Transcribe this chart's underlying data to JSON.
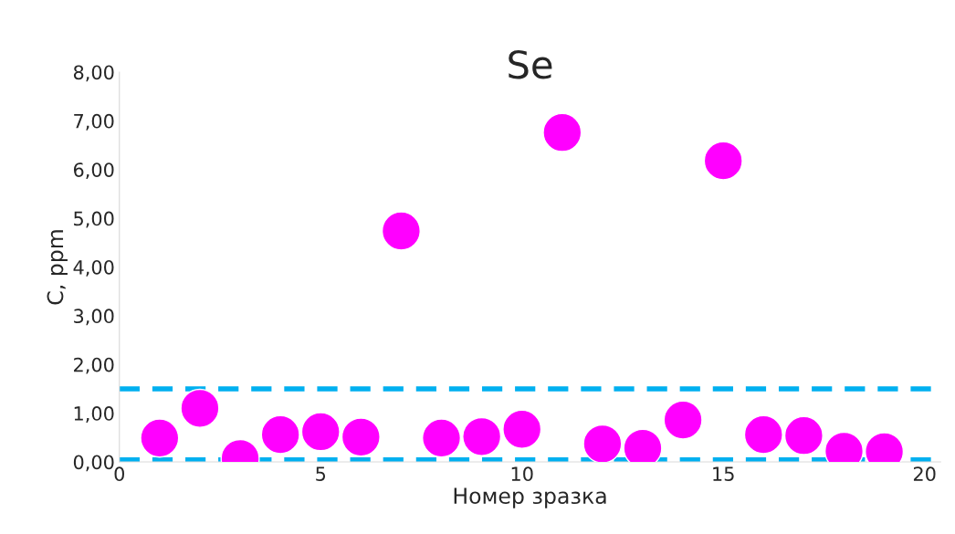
{
  "chart_data": {
    "type": "scatter",
    "title": "Se",
    "xlabel": "Номер зразка",
    "ylabel": "C, ppm",
    "x": [
      1,
      2,
      3,
      4,
      5,
      6,
      7,
      8,
      9,
      10,
      11,
      12,
      13,
      14,
      15,
      16,
      17,
      18,
      19
    ],
    "series": [
      {
        "color": "#ff00ff",
        "values": [
          0.49,
          1.1,
          0.07,
          0.56,
          0.62,
          0.51,
          4.74,
          0.49,
          0.52,
          0.67,
          6.76,
          0.37,
          0.28,
          0.86,
          6.18,
          0.56,
          0.54,
          0.22,
          0.21
        ]
      }
    ],
    "marker": "circle",
    "xlim": [
      0,
      20.4
    ],
    "xticks": [
      0,
      5,
      10,
      15,
      20
    ],
    "ylim": [
      0,
      8
    ],
    "yticks": [
      {
        "value": 0,
        "label": "0,00"
      },
      {
        "value": 1,
        "label": "1,00"
      },
      {
        "value": 2,
        "label": "2,00"
      },
      {
        "value": 3,
        "label": "3,00"
      },
      {
        "value": 4,
        "label": "4,00"
      },
      {
        "value": 5,
        "label": "5,00"
      },
      {
        "value": 6,
        "label": "6,00"
      },
      {
        "value": 7,
        "label": "7,00"
      },
      {
        "value": 8,
        "label": "8,00"
      }
    ],
    "ref_lines": [
      {
        "axis": "y",
        "value": 1.5,
        "color": "#00b0f0",
        "line_style": "dashed"
      },
      {
        "axis": "y",
        "value": 0.04,
        "color": "#00b0f0",
        "line_style": "dashed"
      }
    ],
    "grid": false,
    "legend": false
  }
}
